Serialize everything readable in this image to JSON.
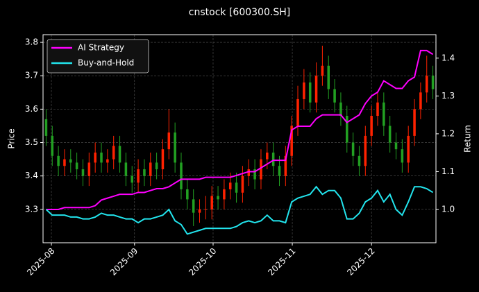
{
  "chart_data": {
    "type": "candlestick",
    "title": "cnstock [600300.SH]",
    "ylabel": "Price",
    "y2label": "Return",
    "categories": [
      null,
      null,
      null,
      null,
      null,
      null,
      null,
      null,
      null,
      null,
      null,
      null,
      null,
      null,
      null,
      null,
      null,
      null,
      null,
      null,
      null,
      null,
      null,
      null,
      null,
      null,
      null,
      null,
      null,
      null,
      null,
      null,
      null,
      null,
      null,
      null,
      null,
      null,
      null,
      null,
      null,
      null,
      null,
      null,
      null,
      null,
      null,
      null,
      null,
      null,
      null,
      null,
      null,
      null,
      null,
      null,
      null,
      null,
      null,
      null,
      null,
      null,
      null,
      null
    ],
    "open": [
      3.57,
      3.52,
      3.46,
      3.43,
      3.45,
      3.44,
      3.42,
      3.4,
      3.44,
      3.47,
      3.44,
      3.45,
      3.49,
      3.44,
      3.4,
      3.38,
      3.42,
      3.4,
      3.44,
      3.42,
      3.48,
      3.53,
      3.44,
      3.36,
      3.33,
      3.29,
      3.3,
      3.3,
      3.34,
      3.33,
      3.36,
      3.38,
      3.35,
      3.4,
      3.42,
      3.39,
      3.45,
      3.47,
      3.43,
      3.4,
      3.46,
      3.55,
      3.63,
      3.68,
      3.62,
      3.7,
      3.73,
      3.66,
      3.62,
      3.58,
      3.5,
      3.46,
      3.43,
      3.52,
      3.58,
      3.62,
      3.55,
      3.5,
      3.48,
      3.44,
      3.52,
      3.6,
      3.65,
      3.7
    ],
    "high": [
      3.6,
      3.55,
      3.49,
      3.48,
      3.48,
      3.47,
      3.45,
      3.47,
      3.5,
      3.5,
      3.48,
      3.52,
      3.52,
      3.47,
      3.43,
      3.45,
      3.45,
      3.47,
      3.47,
      3.51,
      3.6,
      3.56,
      3.47,
      3.39,
      3.36,
      3.33,
      3.34,
      3.37,
      3.37,
      3.39,
      3.41,
      3.41,
      3.43,
      3.45,
      3.45,
      3.48,
      3.5,
      3.5,
      3.46,
      3.49,
      3.58,
      3.67,
      3.72,
      3.71,
      3.74,
      3.79,
      3.76,
      3.69,
      3.65,
      3.61,
      3.53,
      3.49,
      3.55,
      3.61,
      3.65,
      3.65,
      3.58,
      3.53,
      3.51,
      3.55,
      3.63,
      3.68,
      3.76,
      3.73
    ],
    "low": [
      3.49,
      3.43,
      3.4,
      3.4,
      3.41,
      3.39,
      3.37,
      3.37,
      3.41,
      3.41,
      3.41,
      3.42,
      3.41,
      3.37,
      3.35,
      3.35,
      3.37,
      3.37,
      3.39,
      3.39,
      3.45,
      3.41,
      3.33,
      3.3,
      3.25,
      3.26,
      3.27,
      3.27,
      3.3,
      3.3,
      3.33,
      3.32,
      3.32,
      3.37,
      3.36,
      3.36,
      3.42,
      3.4,
      3.37,
      3.37,
      3.43,
      3.52,
      3.6,
      3.59,
      3.59,
      3.67,
      3.63,
      3.59,
      3.55,
      3.47,
      3.43,
      3.4,
      3.4,
      3.49,
      3.55,
      3.52,
      3.47,
      3.45,
      3.41,
      3.41,
      3.49,
      3.57,
      3.62,
      3.63
    ],
    "close": [
      3.52,
      3.46,
      3.43,
      3.45,
      3.44,
      3.42,
      3.4,
      3.44,
      3.47,
      3.44,
      3.45,
      3.49,
      3.44,
      3.4,
      3.38,
      3.42,
      3.4,
      3.44,
      3.42,
      3.48,
      3.53,
      3.44,
      3.36,
      3.33,
      3.29,
      3.3,
      3.3,
      3.34,
      3.33,
      3.36,
      3.38,
      3.35,
      3.4,
      3.42,
      3.39,
      3.45,
      3.47,
      3.43,
      3.4,
      3.46,
      3.55,
      3.63,
      3.68,
      3.62,
      3.7,
      3.73,
      3.66,
      3.62,
      3.58,
      3.5,
      3.46,
      3.43,
      3.52,
      3.58,
      3.62,
      3.55,
      3.5,
      3.48,
      3.44,
      3.52,
      3.6,
      3.65,
      3.7,
      3.66
    ],
    "up_color": "#ff2200",
    "down_color": "#22a022",
    "series": [
      {
        "name": "AI Strategy",
        "color": "#ff00ff",
        "axis": "y2",
        "values": [
          1.0,
          1.0,
          1.0,
          1.005,
          1.005,
          1.005,
          1.005,
          1.005,
          1.01,
          1.025,
          1.03,
          1.035,
          1.04,
          1.04,
          1.04,
          1.045,
          1.045,
          1.05,
          1.055,
          1.055,
          1.06,
          1.07,
          1.08,
          1.08,
          1.08,
          1.08,
          1.085,
          1.085,
          1.085,
          1.085,
          1.085,
          1.09,
          1.095,
          1.1,
          1.1,
          1.11,
          1.12,
          1.13,
          1.13,
          1.13,
          1.21,
          1.22,
          1.22,
          1.22,
          1.24,
          1.25,
          1.25,
          1.25,
          1.25,
          1.23,
          1.24,
          1.25,
          1.28,
          1.3,
          1.31,
          1.34,
          1.33,
          1.32,
          1.32,
          1.34,
          1.35,
          1.42,
          1.42,
          1.41
        ]
      },
      {
        "name": "Buy-and-Hold",
        "color": "#22e5ee",
        "axis": "y2",
        "values": [
          1.0,
          0.985,
          0.985,
          0.985,
          0.98,
          0.98,
          0.975,
          0.975,
          0.98,
          0.99,
          0.985,
          0.985,
          0.98,
          0.975,
          0.975,
          0.965,
          0.975,
          0.975,
          0.98,
          0.985,
          1.0,
          0.97,
          0.96,
          0.935,
          0.94,
          0.945,
          0.95,
          0.95,
          0.95,
          0.95,
          0.95,
          0.955,
          0.965,
          0.97,
          0.965,
          0.97,
          0.985,
          0.97,
          0.97,
          0.965,
          1.02,
          1.03,
          1.035,
          1.04,
          1.06,
          1.04,
          1.05,
          1.05,
          1.03,
          0.975,
          0.975,
          0.99,
          1.02,
          1.03,
          1.05,
          1.02,
          1.04,
          1.0,
          0.985,
          1.02,
          1.06,
          1.06,
          1.055,
          1.045
        ]
      }
    ],
    "xlim": [
      -0.5,
      63.5
    ],
    "xticks": [
      {
        "value": 0.86,
        "label": "2025-08"
      },
      {
        "value": 14.4,
        "label": "2025-09"
      },
      {
        "value": 27.2,
        "label": "2025-10"
      },
      {
        "value": 40.1,
        "label": "2025-11"
      },
      {
        "value": 53.0,
        "label": "2025-12"
      }
    ],
    "ylim": [
      3.2,
      3.823
    ],
    "yticks": [
      3.3,
      3.4,
      3.5,
      3.6,
      3.7,
      3.8
    ],
    "y2lim": [
      0.912,
      1.462
    ],
    "y2ticks": [
      {
        "value": 1.0,
        "label": "1.0"
      },
      1.1,
      1.2,
      1.3,
      1.4
    ],
    "grid": true,
    "legend": "upper left"
  }
}
